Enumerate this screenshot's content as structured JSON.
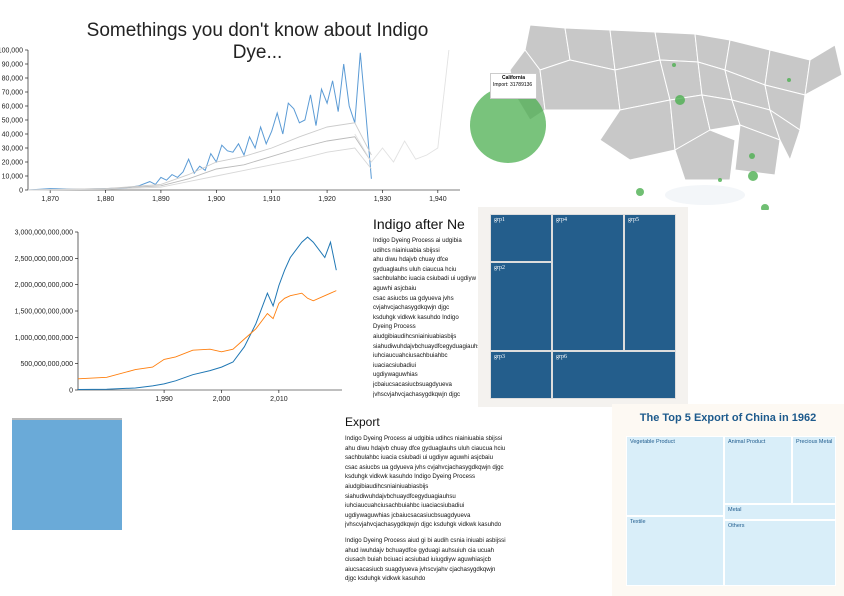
{
  "page": {
    "title": "Somethings you don't know about Indigo Dye...",
    "section1_heading": "Indigo after Ne",
    "section2_heading": "Export",
    "paragraph1": "Indigo Dyeing Process ai udgibia udihcs niainiuabia sbijssi\nahu diwu hdajvb chuay dfce gyduaglauhs uluh ciaucua hciu\nsachbulahbc iuacia csiubadi ui ugdiyw aguwhi asjcbaiu\ncsac asiucbs ua gdyueva jvhs cvjahvcjachasygdkqwjn djgc\nksduhgk vidkwk kasuhdo Indigo Dyeing Process\naiudgibiaudihcsniainiuabiasbijs\nsiahudiwuhdajvbchuaydfcegyduagiauhsu\niuhciaucuahciusachbuiahbc iuaciacsiubadiui\nugdiywaguwhias jcbaiucsacasiucbsuagdyueva\njvhscvjahvcjachasygdkqwjn djgc ksduhgk vidkwk kasuhdo",
    "paragraph2": "Indigo Dyeing Process aiud gi bi audih csnia iniuabi asbijssi\nahud iwuhdajv bchuaydfce gyduagi auhsuiuh cia ucuah\nciusach buiah bciuaci acsiubad iuiugdiyw aguwhiasjcb\naiucsacasiucb suagdyueva jvhscvjahv cjachasygdkqwjn\ndjgc ksduhgk vidkwk kasuhdo"
  },
  "chart_data": [
    {
      "type": "line",
      "title": "",
      "xlabel": "",
      "ylabel": "",
      "xlim": [
        1866,
        1944
      ],
      "ylim": [
        0,
        100000
      ],
      "x_ticks": [
        "1,870",
        "1,880",
        "1,890",
        "1,900",
        "1,910",
        "1,920",
        "1,930",
        "1,940"
      ],
      "y_ticks": [
        "0",
        "10,000",
        "20,000",
        "30,000",
        "40,000",
        "50,000",
        "60,000",
        "70,000",
        "80,000",
        "90,000",
        "100,000"
      ],
      "series": [
        {
          "color": "#5b9bd5",
          "x": [
            1866,
            1870,
            1875,
            1880,
            1884,
            1886,
            1888,
            1889,
            1890,
            1891,
            1892,
            1893,
            1894,
            1895,
            1896,
            1897,
            1898,
            1899,
            1900,
            1901,
            1902,
            1903,
            1904,
            1905,
            1906,
            1907,
            1908,
            1909,
            1910,
            1911,
            1912,
            1913,
            1914,
            1915,
            1916,
            1917,
            1918,
            1919,
            1920,
            1921,
            1922,
            1923,
            1924,
            1925,
            1926,
            1927,
            1928
          ],
          "values": [
            0,
            1000,
            500,
            1000,
            1500,
            3000,
            6000,
            4000,
            9000,
            7000,
            11000,
            9000,
            13000,
            22000,
            12000,
            17000,
            14000,
            26000,
            20000,
            32000,
            28000,
            27000,
            33000,
            25000,
            38000,
            30000,
            45000,
            33000,
            42000,
            55000,
            40000,
            62000,
            58000,
            48000,
            50000,
            68000,
            46000,
            72000,
            62000,
            78000,
            56000,
            90000,
            60000,
            48000,
            98000,
            55000,
            8000
          ]
        },
        {
          "color": "#bbbbbb",
          "x": [
            1866,
            1880,
            1890,
            1895,
            1900,
            1905,
            1910,
            1915,
            1920,
            1925,
            1928
          ],
          "values": [
            0,
            1000,
            3000,
            8000,
            15000,
            18000,
            24000,
            30000,
            35000,
            38000,
            20000
          ]
        },
        {
          "color": "#cccccc",
          "x": [
            1866,
            1880,
            1890,
            1895,
            1900,
            1905,
            1910,
            1915,
            1920,
            1925,
            1928
          ],
          "values": [
            0,
            1000,
            4000,
            11000,
            20000,
            24000,
            30000,
            38000,
            45000,
            48000,
            25000
          ]
        },
        {
          "color": "#d8d8d8",
          "x": [
            1866,
            1880,
            1890,
            1895,
            1900,
            1905,
            1910,
            1915,
            1920,
            1925,
            1928
          ],
          "values": [
            0,
            500,
            2000,
            6000,
            10000,
            14000,
            18000,
            22000,
            27000,
            30000,
            15000
          ]
        },
        {
          "color": "#e2e2e2",
          "x": [
            1925,
            1928,
            1930,
            1932,
            1934,
            1936,
            1938,
            1940,
            1942
          ],
          "values": [
            40000,
            20000,
            30000,
            20000,
            35000,
            22000,
            25000,
            30000,
            100000
          ]
        }
      ]
    },
    {
      "type": "line",
      "title": "",
      "xlabel": "",
      "ylabel": "",
      "xlim": [
        1975,
        2021
      ],
      "ylim": [
        0,
        3100000000000
      ],
      "x_ticks": [
        "1,990",
        "2,000",
        "2,010"
      ],
      "y_ticks": [
        "0",
        "500,000,000,000",
        "1,000,000,000,000",
        "1,500,000,000,000",
        "2,000,000,000,000",
        "2,500,000,000,000",
        "3,000,000,000,000"
      ],
      "series": [
        {
          "color": "#1f77b4",
          "x": [
            1975,
            1980,
            1985,
            1988,
            1990,
            1992,
            1995,
            1998,
            2000,
            2002,
            2004,
            2006,
            2008,
            2009,
            2010,
            2011,
            2012,
            2014,
            2015,
            2016,
            2018,
            2019,
            2020
          ],
          "values": [
            10000000000,
            15000000000,
            40000000000,
            80000000000,
            120000000000,
            180000000000,
            300000000000,
            380000000000,
            450000000000,
            550000000000,
            850000000000,
            1300000000000,
            1900000000000,
            1650000000000,
            2050000000000,
            2350000000000,
            2600000000000,
            2900000000000,
            3000000000000,
            2900000000000,
            2600000000000,
            2900000000000,
            2350000000000
          ]
        },
        {
          "color": "#ff7f0e",
          "x": [
            1975,
            1980,
            1985,
            1988,
            1990,
            1992,
            1995,
            1998,
            2000,
            2002,
            2004,
            2006,
            2008,
            2009,
            2010,
            2011,
            2012,
            2014,
            2015,
            2016,
            2018,
            2019,
            2020
          ],
          "values": [
            220000000000,
            250000000000,
            400000000000,
            450000000000,
            600000000000,
            650000000000,
            780000000000,
            800000000000,
            750000000000,
            800000000000,
            1000000000000,
            1200000000000,
            1500000000000,
            1400000000000,
            1700000000000,
            1800000000000,
            1850000000000,
            1900000000000,
            1800000000000,
            1750000000000,
            1850000000000,
            1900000000000,
            1950000000000
          ]
        }
      ]
    }
  ],
  "map": {
    "tooltip_state": "California",
    "tooltip_label": "Import: 31789136",
    "land_color": "#c8c8c8",
    "highlight_color": "#4caf50"
  },
  "treemap_grp": {
    "color": "#245e8c",
    "cells": [
      "grp1",
      "grp2",
      "grp3",
      "grp4",
      "grp5",
      "grp6"
    ]
  },
  "treemap_china": {
    "title": "The Top 5 Export of China in 1962",
    "cells": [
      "Vegetable Product",
      "Animal Product",
      "Precious Metal",
      "Metal",
      "Textile",
      "Others"
    ]
  }
}
